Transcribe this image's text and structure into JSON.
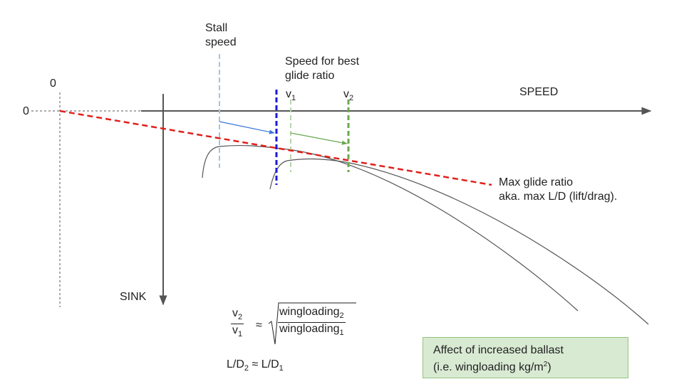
{
  "axes": {
    "origin_x_label": "0",
    "origin_y_label": "0",
    "speed_label": "SPEED",
    "sink_label": "SINK"
  },
  "markers": {
    "stall": [
      "Stall",
      "speed"
    ],
    "best_glide": [
      "Speed for best",
      "glide ratio"
    ],
    "v1": {
      "base": "v",
      "sub": "1"
    },
    "v2": {
      "base": "v",
      "sub": "2"
    }
  },
  "tangent_label": [
    "Max glide ratio",
    "aka. max L/D (lift/drag)."
  ],
  "formula": {
    "approx": "≈",
    "num_base": "v",
    "num_sub": "2",
    "den_base": "v",
    "den_sub": "1",
    "root_num_base": "wingloading",
    "root_num_sub": "2",
    "root_den_base": "wingloading",
    "root_den_sub": "1",
    "ld_left": "L/D",
    "ld_left_sub": "2",
    "ld_right": "L/D",
    "ld_right_sub": "1"
  },
  "ballast_box": {
    "line1": "Affect of increased ballast",
    "line2_prefix": "(i.e. wingloading kg/m",
    "line2_sup": "2",
    "line2_suffix": ")"
  },
  "colors": {
    "axis": "#555555",
    "tangent": "#e0201c",
    "stall": "#9fc5e8",
    "v1_line": "#1a1adc",
    "v1_light": "#b6d7a8",
    "v2_line": "#6aa84f",
    "blue_arrow": "#3c78d8",
    "green_arrow": "#6aa84f",
    "curve": "#555555",
    "box_fill": "#d9ead3",
    "box_border": "#93c47d"
  }
}
